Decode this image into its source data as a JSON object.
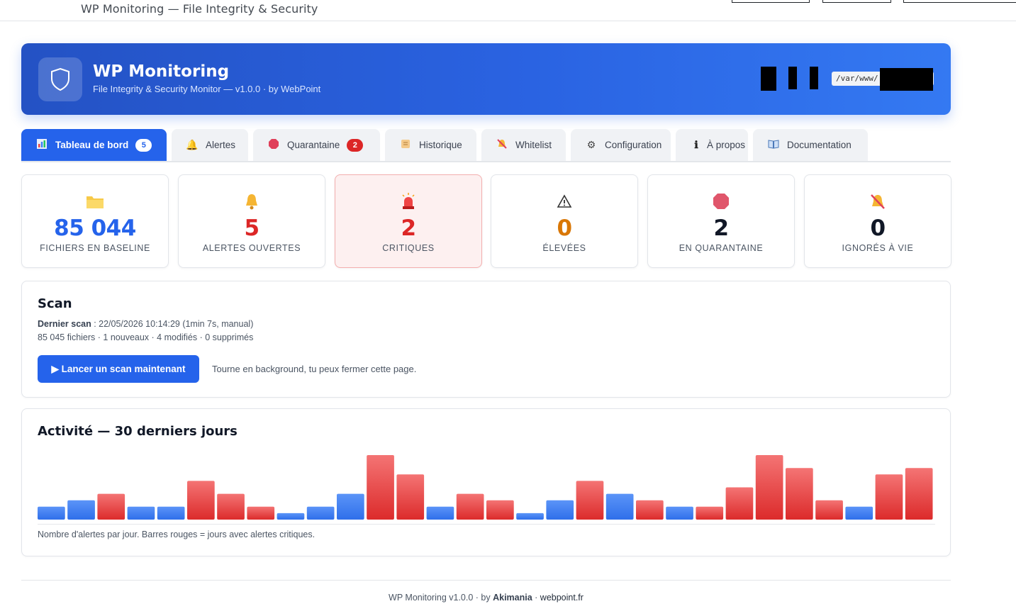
{
  "window": {
    "title": "WP Monitoring — File Integrity & Security"
  },
  "header": {
    "title": "WP Monitoring",
    "subtitle": "File Integrity & Security Monitor — v1.0.0 · by WebPoint",
    "path": "/var/www/",
    "logo_icon": "shield-icon"
  },
  "tabs": [
    {
      "label": "Tableau de bord",
      "icon": "chart-icon",
      "badge": "5",
      "active": true
    },
    {
      "label": "Alertes",
      "icon": "bell-icon"
    },
    {
      "label": "Quarantaine",
      "icon": "stop-icon",
      "badge": "2"
    },
    {
      "label": "Historique",
      "icon": "scroll-icon"
    },
    {
      "label": "Whitelist",
      "icon": "muted-bell-icon"
    },
    {
      "label": "Configuration",
      "icon": "gear-icon"
    },
    {
      "label": "À propos",
      "icon": "info-icon"
    },
    {
      "label": "Documentation",
      "icon": "book-icon"
    }
  ],
  "stats": [
    {
      "value": "85 044",
      "label": "FICHIERS EN BASELINE",
      "icon": "folder-icon",
      "color": "#2563eb"
    },
    {
      "value": "5",
      "label": "ALERTES OUVERTES",
      "icon": "bell-icon",
      "color": "#dc2626"
    },
    {
      "value": "2",
      "label": "CRITIQUES",
      "icon": "siren-icon",
      "color": "#dc2626"
    },
    {
      "value": "0",
      "label": "ÉLEVÉES",
      "icon": "warning-icon",
      "color": "#d97706"
    },
    {
      "value": "2",
      "label": "EN QUARANTAINE",
      "icon": "stop-icon",
      "color": "#111827"
    },
    {
      "value": "0",
      "label": "IGNORÉS À VIE",
      "icon": "muted-bell-icon",
      "color": "#111827"
    }
  ],
  "scan": {
    "title": "Scan",
    "last_scan_label": "Dernier scan",
    "last_scan_value": " : 22/05/2026 10:14:29 (1min 7s, manual)",
    "summary": "85 045 fichiers · 1 nouveaux · 4 modifiés · 0 supprimés",
    "button_label": "▶ Lancer un scan maintenant",
    "hint": "Tourne en background, tu peux fermer cette page."
  },
  "activity": {
    "title": "Activité — 30 derniers jours",
    "caption": "Nombre d'alertes par jour. Barres rouges = jours avec alertes critiques."
  },
  "chart_data": {
    "type": "bar",
    "values": [
      2,
      3,
      4,
      2,
      2,
      6,
      4,
      2,
      1,
      2,
      4,
      10,
      7,
      2,
      4,
      3,
      1,
      3,
      6,
      4,
      3,
      2,
      2,
      5,
      10,
      8,
      3,
      2,
      7,
      8
    ],
    "critical": [
      false,
      false,
      true,
      false,
      false,
      true,
      true,
      true,
      false,
      false,
      false,
      true,
      true,
      false,
      true,
      true,
      false,
      false,
      true,
      false,
      true,
      false,
      true,
      true,
      true,
      true,
      true,
      false,
      true,
      true
    ],
    "colors": {
      "normal": "#3b82f6",
      "critical": "#ef4444"
    },
    "grid": false
  },
  "footer": {
    "prefix": "WP Monitoring v1.0.0 · by ",
    "author": "Akimania",
    "sep": " · ",
    "site": "webpoint.fr"
  }
}
